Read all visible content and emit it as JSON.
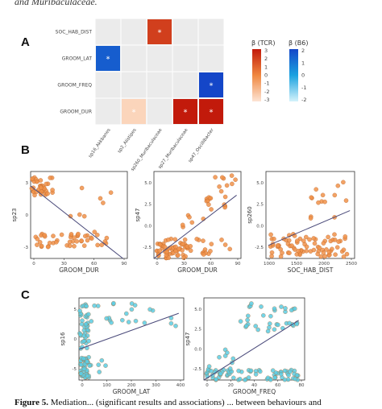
{
  "caption_top": "and Muribaculaceae.",
  "caption_bottom": {
    "lead": "Figure 5.",
    "text": "Mediation... (significant results and associations) ... between behaviours and"
  },
  "panels": {
    "A": "A",
    "B": "B",
    "C": "C"
  },
  "colors": {
    "tcr_high": "#c21a0b",
    "tcr_mid": "#f08840",
    "tcr_low": "#fde4d4",
    "b6_high": "#1446c8",
    "b6_mid": "#1aa2e0",
    "b6_low": "#d4f3fb",
    "scatterB": "#f0924a",
    "scatterC": "#5ccde3"
  },
  "chart_data": [
    {
      "type": "heatmap",
      "rows": [
        "SOC_HAB_DIST",
        "GROOM_LAT",
        "GROOM_FREQ",
        "GROOM_DUR"
      ],
      "columns": [
        "sp16_Akkbanes",
        "sp2_Alistipes",
        "sp260_Muribaculaceae",
        "sp27_Muribaculaceae",
        "sp47_Oscillibacter"
      ],
      "cells": [
        {
          "row": "SOC_HAB_DIST",
          "col": "sp260_Muribaculaceae",
          "scale": "TCR",
          "value": 2,
          "star": "*"
        },
        {
          "row": "GROOM_LAT",
          "col": "sp16_Akkbanes",
          "scale": "B6",
          "value": 1.5,
          "star": "*"
        },
        {
          "row": "GROOM_FREQ",
          "col": "sp47_Oscillibacter",
          "scale": "B6",
          "value": 2,
          "star": "*"
        },
        {
          "row": "GROOM_DUR",
          "col": "sp2_Alistipes",
          "scale": "TCR",
          "value": -2.5,
          "star": "*"
        },
        {
          "row": "GROOM_DUR",
          "col": "sp27_Muribaculaceae",
          "scale": "TCR",
          "value": 3,
          "star": "*"
        },
        {
          "row": "GROOM_DUR",
          "col": "sp47_Oscillibacter",
          "scale": "TCR",
          "value": 3,
          "star": "*"
        }
      ],
      "legends": [
        {
          "title": "β (TCR)",
          "ticks": [
            "3",
            "2",
            "1",
            "0",
            "-1",
            "-2",
            "-3"
          ]
        },
        {
          "title": "β (B6)",
          "ticks": [
            "2",
            "1",
            "0",
            "-1",
            "-2"
          ]
        }
      ]
    },
    {
      "type": "scatter",
      "panel": "B",
      "xlabel": "GROOM_DUR",
      "ylabel": "sp23",
      "xticks": [
        "0",
        "30",
        "60",
        "90"
      ],
      "yticks": [
        "3",
        "0",
        "-3"
      ],
      "xlim": [
        0,
        110
      ],
      "ylim": [
        -6,
        6
      ],
      "clusterA": {
        "x": [
          0,
          25
        ],
        "y": [
          2.5,
          5
        ]
      },
      "clusterB": {
        "x": [
          5,
          95
        ],
        "y": [
          -4.2,
          -2.8
        ]
      },
      "trend": [
        [
          0,
          4
        ],
        [
          105,
          -6
        ]
      ]
    },
    {
      "type": "scatter",
      "panel": "B",
      "xlabel": "GROOM_DUR",
      "ylabel": "sp47",
      "xticks": [
        "0",
        "30",
        "60",
        "90"
      ],
      "yticks": [
        "5.0",
        "2.5",
        "0.0",
        "-2.5"
      ],
      "xlim": [
        0,
        100
      ],
      "ylim": [
        -4,
        7
      ],
      "trend": [
        [
          0,
          -4
        ],
        [
          95,
          4
        ]
      ]
    },
    {
      "type": "scatter",
      "panel": "B",
      "xlabel": "SOC_HAB_DIST",
      "ylabel": "sp260",
      "xticks": [
        "1000",
        "1500",
        "2000",
        "2500"
      ],
      "yticks": [
        "5.0",
        "2.5",
        "0.0",
        "-2.5"
      ],
      "xlim": [
        900,
        2800
      ],
      "ylim": [
        -4,
        6
      ],
      "trend": [
        [
          950,
          -2.5
        ],
        [
          2700,
          1.5
        ]
      ]
    },
    {
      "type": "scatter",
      "panel": "C",
      "xlabel": "GROOM_LAT",
      "ylabel": "sp16",
      "xticks": [
        "0",
        "100",
        "200",
        "300",
        "400"
      ],
      "yticks": [
        "5",
        "0",
        "-5"
      ],
      "xlim": [
        0,
        420
      ],
      "ylim": [
        -9,
        7
      ],
      "trend": [
        [
          0,
          -3
        ],
        [
          400,
          4
        ]
      ]
    },
    {
      "type": "scatter",
      "panel": "C",
      "xlabel": "GROOM_FREQ",
      "ylabel": "sp47",
      "xticks": [
        "0",
        "20",
        "40",
        "60",
        "80"
      ],
      "yticks": [
        "5.0",
        "2.5",
        "0.0",
        "-2.5"
      ],
      "xlim": [
        0,
        85
      ],
      "ylim": [
        -4,
        7
      ],
      "trend": [
        [
          0,
          -4
        ],
        [
          80,
          4
        ]
      ]
    }
  ]
}
